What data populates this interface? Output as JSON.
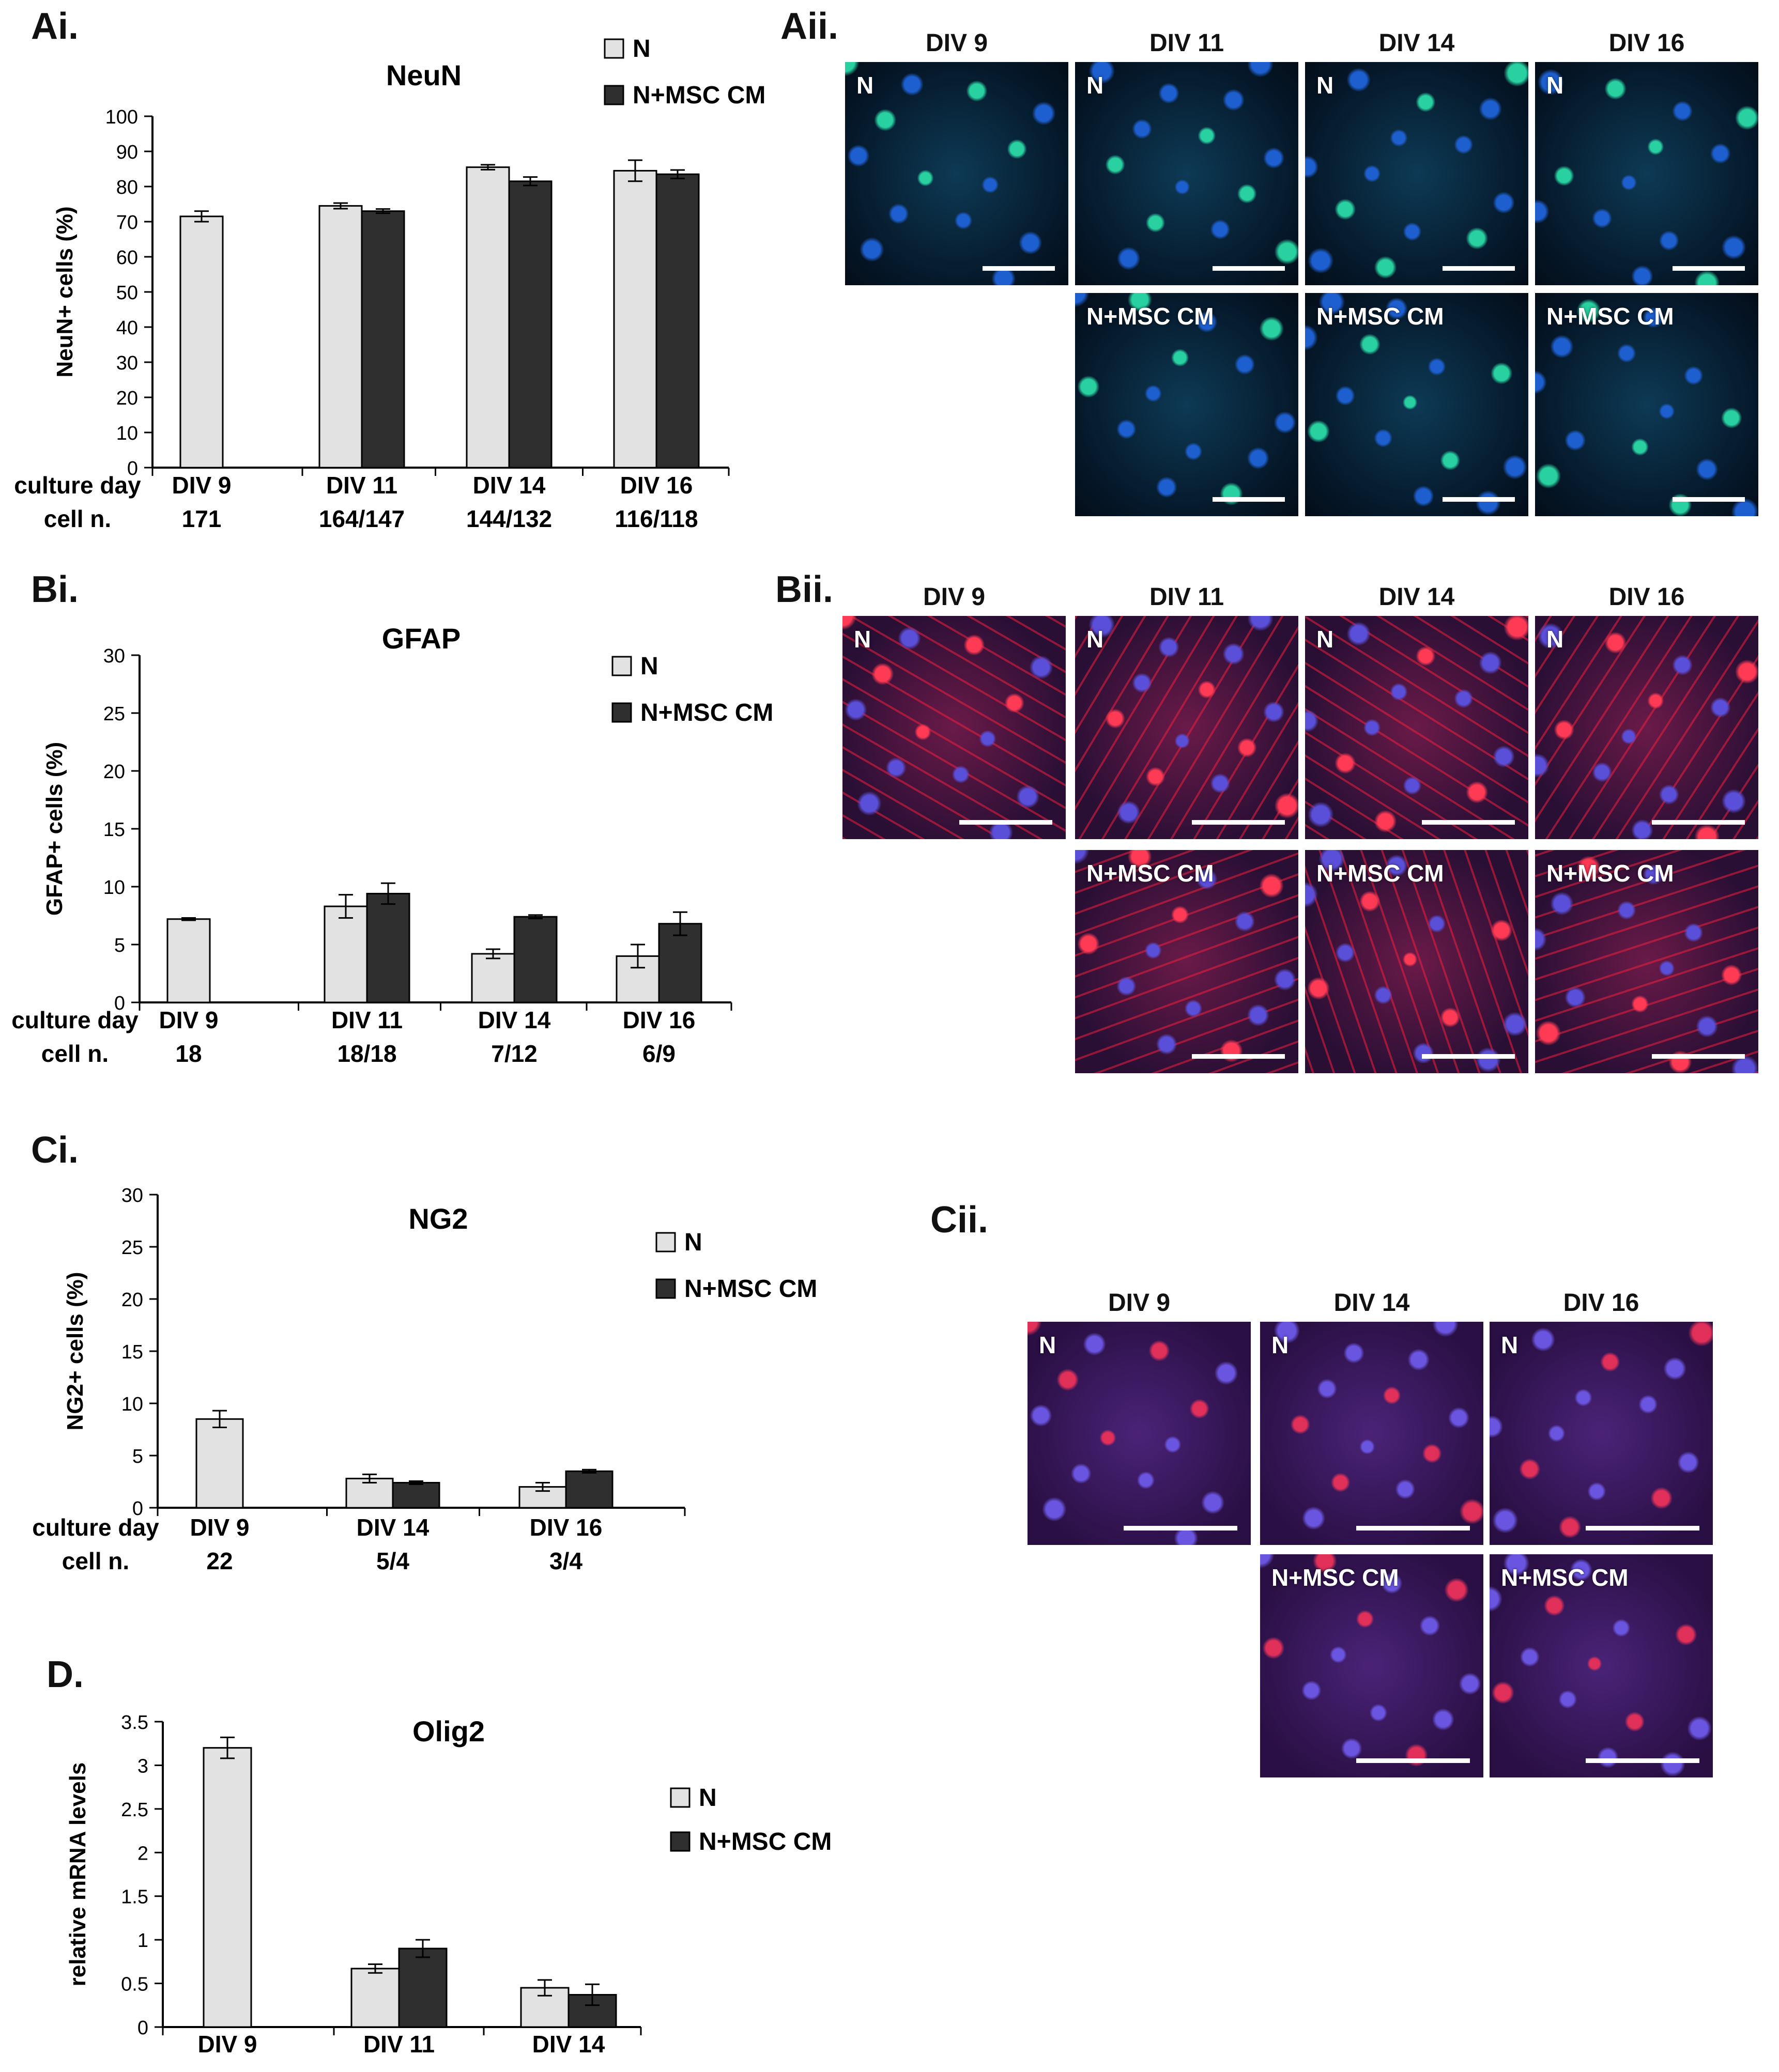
{
  "panels": {
    "ai": "Ai.",
    "aii": "Aii.",
    "bi": "Bi.",
    "bii": "Bii.",
    "ci": "Ci.",
    "cii": "Cii.",
    "d": "D."
  },
  "colors": {
    "N": "#e2e2e2",
    "N_MSC_CM": "#2f2f2f",
    "edge": "#000000"
  },
  "chart_data": [
    {
      "id": "neun",
      "type": "bar",
      "title": "NeuN",
      "ylabel": "NeuN+ cells (%)",
      "ylim": [
        0,
        100
      ],
      "yticks": [
        0,
        10,
        20,
        30,
        40,
        50,
        60,
        70,
        80,
        90,
        100
      ],
      "row_labels": [
        "culture day",
        "cell n."
      ],
      "categories": [
        "DIV 9",
        "DIV 11",
        "DIV 14",
        "DIV 16"
      ],
      "cell_n": [
        "171",
        "164/147",
        "144/132",
        "116/118"
      ],
      "series": [
        {
          "name": "N",
          "values": [
            71.5,
            74.5,
            85.5,
            84.5
          ],
          "errors": [
            1.5,
            0.8,
            0.7,
            3.0
          ]
        },
        {
          "name": "N+MSC CM",
          "values": [
            null,
            73.0,
            81.5,
            83.5
          ],
          "errors": [
            null,
            0.6,
            1.2,
            1.2
          ]
        }
      ]
    },
    {
      "id": "gfap",
      "type": "bar",
      "title": "GFAP",
      "ylabel": "GFAP+ cells (%)",
      "ylim": [
        0,
        30
      ],
      "yticks": [
        0,
        5,
        10,
        15,
        20,
        25,
        30
      ],
      "row_labels": [
        "culture day",
        "cell n."
      ],
      "categories": [
        "DIV 9",
        "DIV 11",
        "DIV 14",
        "DIV 16"
      ],
      "cell_n": [
        "18",
        "18/18",
        "7/12",
        "6/9"
      ],
      "series": [
        {
          "name": "N",
          "values": [
            7.2,
            8.3,
            4.2,
            4.0
          ],
          "errors": [
            0.1,
            1.0,
            0.4,
            1.0
          ]
        },
        {
          "name": "N+MSC CM",
          "values": [
            null,
            9.4,
            7.4,
            6.8
          ],
          "errors": [
            null,
            0.9,
            0.15,
            1.0
          ]
        }
      ]
    },
    {
      "id": "ng2",
      "type": "bar",
      "title": "NG2",
      "ylabel": "NG2+ cells (%)",
      "ylim": [
        0,
        30
      ],
      "yticks": [
        0,
        5,
        10,
        15,
        20,
        25,
        30
      ],
      "row_labels": [
        "culture day",
        "cell n."
      ],
      "categories": [
        "DIV 9",
        "DIV 14",
        "DIV 16"
      ],
      "cell_n": [
        "22",
        "5/4",
        "3/4"
      ],
      "series": [
        {
          "name": "N",
          "values": [
            8.5,
            2.8,
            2.0
          ],
          "errors": [
            0.8,
            0.4,
            0.4
          ]
        },
        {
          "name": "N+MSC CM",
          "values": [
            null,
            2.4,
            3.5
          ],
          "errors": [
            null,
            0.15,
            0.15
          ]
        }
      ]
    },
    {
      "id": "olig2",
      "type": "bar",
      "title": "Olig2",
      "ylabel": "relative mRNA levels",
      "ylim": [
        0,
        3.5
      ],
      "yticks": [
        0,
        0.5,
        1,
        1.5,
        2,
        2.5,
        3,
        3.5
      ],
      "categories": [
        "DIV 9",
        "DIV 11",
        "DIV 14"
      ],
      "series": [
        {
          "name": "N",
          "values": [
            3.2,
            0.67,
            0.45
          ],
          "errors": [
            0.12,
            0.05,
            0.09
          ]
        },
        {
          "name": "N+MSC CM",
          "values": [
            null,
            0.9,
            0.37
          ],
          "errors": [
            null,
            0.1,
            0.12
          ]
        }
      ]
    }
  ],
  "micrographs": {
    "aii": {
      "columns": [
        "DIV 9",
        "DIV 11",
        "DIV 14",
        "DIV 16"
      ],
      "top_label": "N",
      "bottom_label": "N+MSC CM"
    },
    "bii": {
      "columns": [
        "DIV 9",
        "DIV 11",
        "DIV 14",
        "DIV 16"
      ],
      "top_label": "N",
      "bottom_label": "N+MSC CM"
    },
    "cii": {
      "columns": [
        "DIV 9",
        "DIV 14",
        "DIV 16"
      ],
      "top_label": "N",
      "bottom_label": "N+MSC CM"
    }
  }
}
